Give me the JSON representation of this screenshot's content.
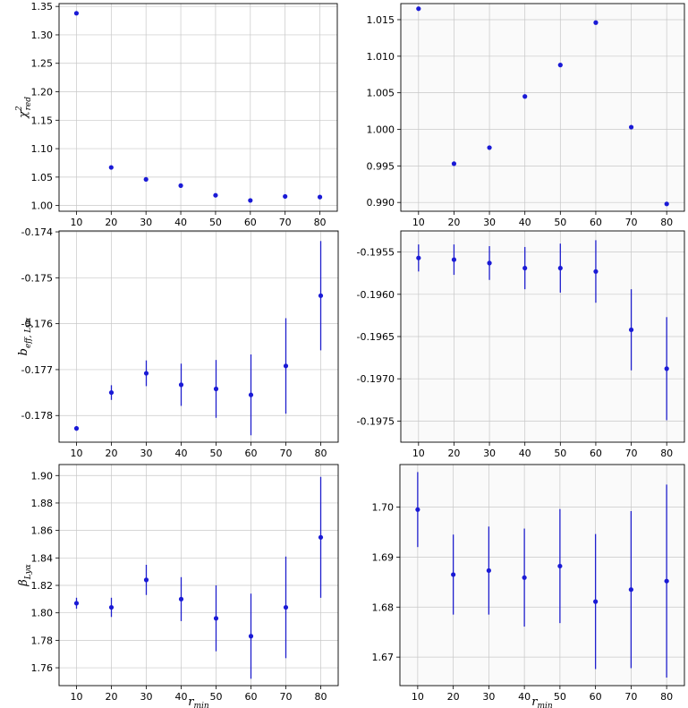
{
  "chart_data": [
    {
      "type": "scatter",
      "panel": "top-left",
      "ylabel": "χ²red",
      "ylabel_main": "χ",
      "ylabel_sup": "2",
      "ylabel_sub": "red",
      "xlabel": "",
      "xticks": [
        "10",
        "20",
        "30",
        "40",
        "50",
        "60",
        "70",
        "80"
      ],
      "yticks": [
        "1.00",
        "1.05",
        "1.10",
        "1.15",
        "1.20",
        "1.25",
        "1.30",
        "1.35"
      ],
      "ylim": [
        0.99,
        1.355
      ],
      "xlim": [
        5,
        85
      ],
      "grid": true,
      "x": [
        10,
        20,
        30,
        40,
        50,
        60,
        70,
        80
      ],
      "y": [
        1.338,
        1.067,
        1.046,
        1.035,
        1.018,
        1.009,
        1.016,
        1.015
      ],
      "err": [
        0,
        0,
        0,
        0,
        0,
        0,
        0,
        0
      ]
    },
    {
      "type": "scatter",
      "panel": "top-right",
      "ylabel": "",
      "xlabel": "",
      "xticks": [
        "10",
        "20",
        "30",
        "40",
        "50",
        "60",
        "70",
        "80"
      ],
      "yticks": [
        "0.990",
        "0.995",
        "1.000",
        "1.005",
        "1.010",
        "1.015"
      ],
      "ylim": [
        0.9888,
        1.0172
      ],
      "xlim": [
        5,
        85
      ],
      "grid": true,
      "x": [
        10,
        20,
        30,
        40,
        50,
        60,
        70,
        80
      ],
      "y": [
        1.0165,
        0.9953,
        0.9975,
        1.0045,
        1.0088,
        1.0146,
        1.0003,
        0.9898
      ],
      "err": [
        0,
        0,
        0,
        0,
        0,
        0,
        0,
        0
      ]
    },
    {
      "type": "scatter",
      "panel": "middle-left",
      "ylabel": "b_eff,Lyα",
      "ylabel_main": "b",
      "ylabel_sub": "eff, Lyα",
      "xlabel": "",
      "xticks": [
        "10",
        "20",
        "30",
        "40",
        "50",
        "60",
        "70",
        "80"
      ],
      "yticks": [
        "-0.178",
        "-0.177",
        "-0.176",
        "-0.175",
        "-0.174"
      ],
      "ylim": [
        -0.17858,
        -0.17398
      ],
      "xlim": [
        5,
        85
      ],
      "grid": true,
      "x": [
        10,
        20,
        30,
        40,
        50,
        60,
        70,
        80
      ],
      "y": [
        -0.17828,
        -0.1775,
        -0.17708,
        -0.17733,
        -0.17742,
        -0.17755,
        -0.17692,
        -0.17539
      ],
      "err": [
        5e-05,
        0.00016,
        0.00028,
        0.00046,
        0.00063,
        0.00088,
        0.00104,
        0.00119
      ]
    },
    {
      "type": "scatter",
      "panel": "middle-right",
      "ylabel": "",
      "xlabel": "",
      "xticks": [
        "10",
        "20",
        "30",
        "40",
        "50",
        "60",
        "70",
        "80"
      ],
      "yticks": [
        "-0.1975",
        "-0.1970",
        "-0.1965",
        "-0.1960",
        "-0.1955"
      ],
      "ylim": [
        -0.19775,
        -0.19525
      ],
      "xlim": [
        5,
        85
      ],
      "grid": true,
      "x": [
        10,
        20,
        30,
        40,
        50,
        60,
        70,
        80
      ],
      "y": [
        -0.19557,
        -0.19559,
        -0.19563,
        -0.19569,
        -0.19569,
        -0.19573,
        -0.19642,
        -0.19688
      ],
      "err": [
        0.00016,
        0.00018,
        0.0002,
        0.00025,
        0.00029,
        0.00037,
        0.00048,
        0.00061
      ]
    },
    {
      "type": "scatter",
      "panel": "bottom-left",
      "ylabel": "β_Lyα",
      "ylabel_main": "β",
      "ylabel_sub": "Lyα",
      "xlabel": "r_min",
      "xlabel_main": "r",
      "xlabel_sub": "min",
      "xticks": [
        "10",
        "20",
        "30",
        "40",
        "50",
        "60",
        "70",
        "80"
      ],
      "yticks": [
        "1.76",
        "1.78",
        "1.80",
        "1.82",
        "1.84",
        "1.86",
        "1.88",
        "1.90"
      ],
      "ylim": [
        1.747,
        1.908
      ],
      "xlim": [
        5,
        85
      ],
      "grid": true,
      "x": [
        10,
        20,
        30,
        40,
        50,
        60,
        70,
        80
      ],
      "y": [
        1.807,
        1.804,
        1.824,
        1.81,
        1.796,
        1.783,
        1.804,
        1.855
      ],
      "err": [
        0.004,
        0.007,
        0.011,
        0.016,
        0.024,
        0.031,
        0.037,
        0.044
      ]
    },
    {
      "type": "scatter",
      "panel": "bottom-right",
      "ylabel": "",
      "xlabel": "r_min",
      "xlabel_main": "r",
      "xlabel_sub": "min",
      "xticks": [
        "10",
        "20",
        "30",
        "40",
        "50",
        "60",
        "70",
        "80"
      ],
      "yticks": [
        "1.67",
        "1.68",
        "1.69",
        "1.70"
      ],
      "ylim": [
        1.6643,
        1.7085
      ],
      "xlim": [
        5,
        85
      ],
      "grid": true,
      "x": [
        10,
        20,
        30,
        40,
        50,
        60,
        70,
        80
      ],
      "y": [
        1.6995,
        1.6865,
        1.6873,
        1.6859,
        1.6882,
        1.6811,
        1.6835,
        1.6852
      ],
      "err": [
        0.0075,
        0.008,
        0.0088,
        0.0098,
        0.0114,
        0.0135,
        0.0157,
        0.0193
      ]
    }
  ],
  "colors": {
    "marker": "#1a1ad6",
    "errorbar": "#1f1fcc",
    "grid": "#c8c8c8"
  }
}
